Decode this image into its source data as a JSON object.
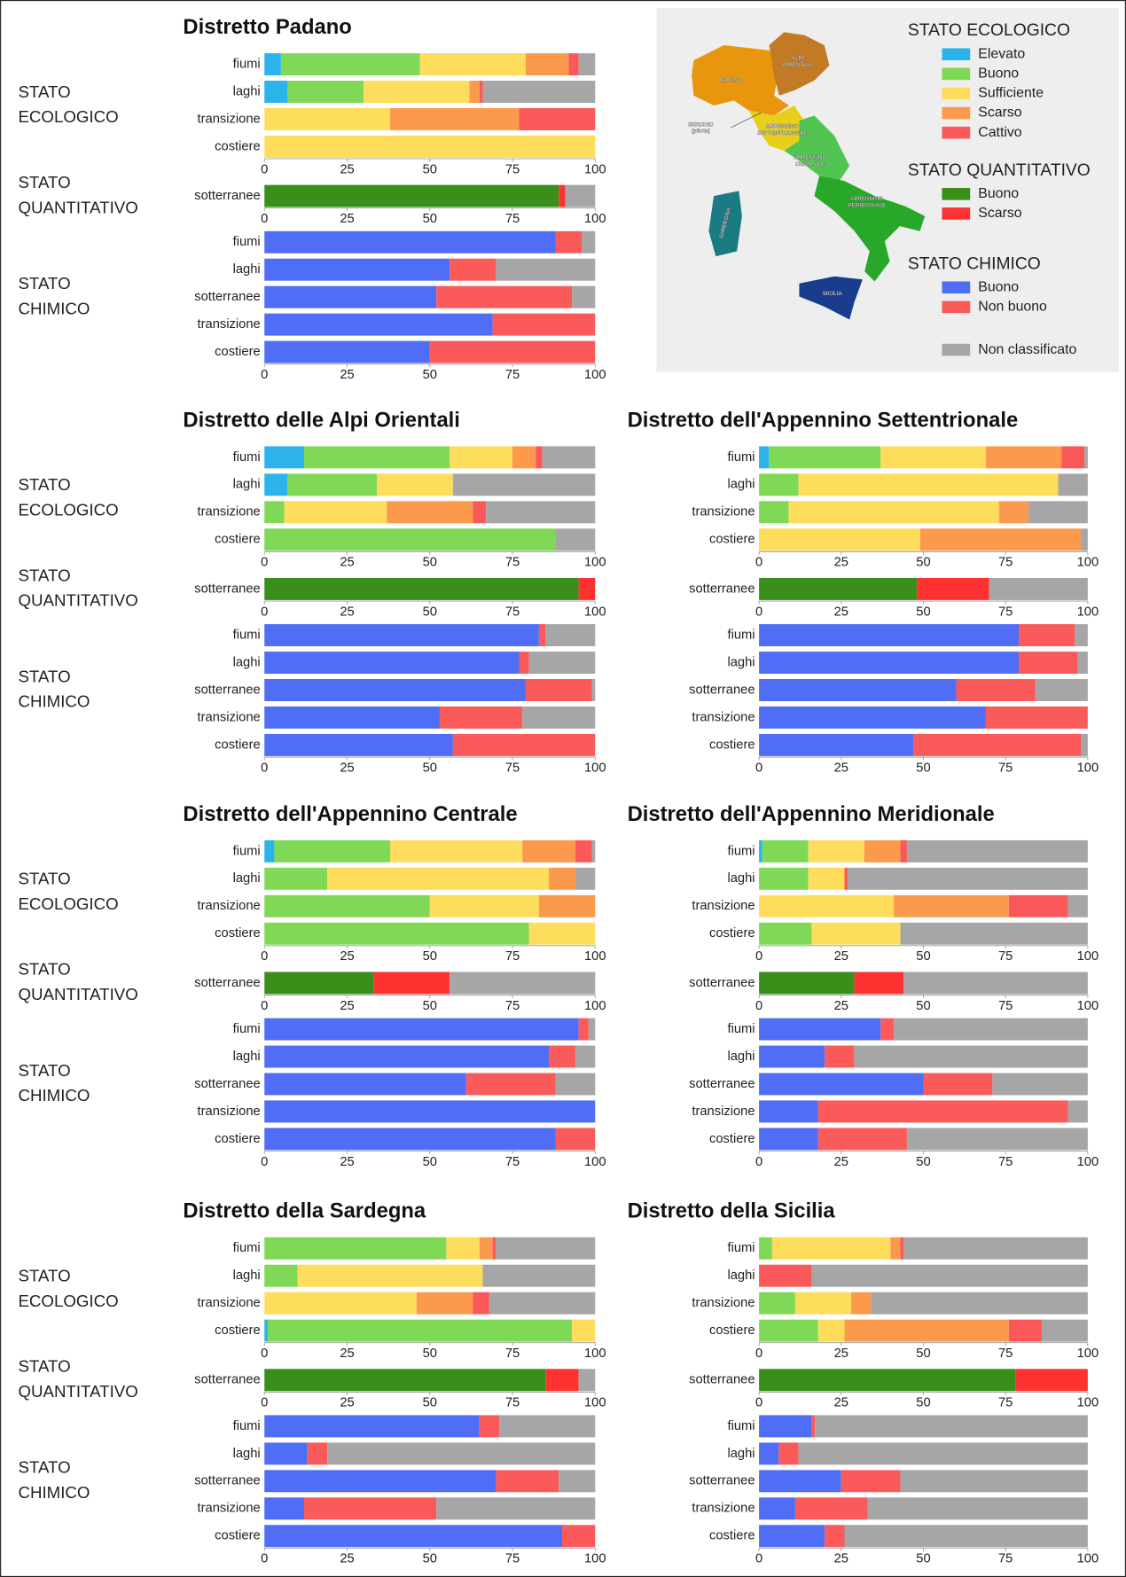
{
  "chart_data": [
    {
      "type": "bar",
      "title": "Distretto Padano",
      "xlim": [
        0,
        100
      ],
      "xticks": [
        0,
        25,
        50,
        75,
        100
      ],
      "panels": [
        {
          "label": "STATO ECOLOGICO",
          "categories": [
            "fiumi",
            "laghi",
            "transizione",
            "costiere"
          ],
          "series": [
            {
              "values": [
                5,
                7,
                0,
                0
              ]
            },
            {
              "values": [
                42,
                23,
                0,
                0
              ]
            },
            {
              "values": [
                32,
                32,
                38,
                100
              ]
            },
            {
              "values": [
                13,
                3,
                39,
                0
              ]
            },
            {
              "values": [
                3,
                1,
                23,
                0
              ]
            },
            {
              "values": [
                5,
                34,
                0,
                0
              ]
            }
          ]
        },
        {
          "label": "STATO QUANTITATIVO",
          "categories": [
            "sotterranee"
          ],
          "series": [
            {
              "values": [
                89
              ]
            },
            {
              "values": [
                2
              ]
            },
            {
              "values": [
                9
              ]
            }
          ]
        },
        {
          "label": "STATO CHIMICO",
          "categories": [
            "fiumi",
            "laghi",
            "sotterranee",
            "transizione",
            "costiere"
          ],
          "series": [
            {
              "values": [
                88,
                56,
                52,
                69,
                50
              ]
            },
            {
              "values": [
                8,
                14,
                41,
                31,
                50
              ]
            },
            {
              "values": [
                4,
                30,
                7,
                0,
                0
              ]
            }
          ]
        }
      ]
    },
    {
      "type": "bar",
      "title": "Distretto delle Alpi Orientali",
      "xlim": [
        0,
        100
      ],
      "xticks": [
        0,
        25,
        50,
        75,
        100
      ],
      "panels": [
        {
          "label": "STATO ECOLOGICO",
          "categories": [
            "fiumi",
            "laghi",
            "transizione",
            "costiere"
          ],
          "series": [
            {
              "values": [
                12,
                7,
                0,
                0
              ]
            },
            {
              "values": [
                44,
                27,
                6,
                88
              ]
            },
            {
              "values": [
                19,
                23,
                31,
                0
              ]
            },
            {
              "values": [
                7,
                0,
                26,
                0
              ]
            },
            {
              "values": [
                2,
                0,
                4,
                0
              ]
            },
            {
              "values": [
                16,
                43,
                33,
                12
              ]
            }
          ]
        },
        {
          "label": "STATO QUANTITATIVO",
          "categories": [
            "sotterranee"
          ],
          "series": [
            {
              "values": [
                95
              ]
            },
            {
              "values": [
                5
              ]
            },
            {
              "values": [
                0
              ]
            }
          ]
        },
        {
          "label": "STATO CHIMICO",
          "categories": [
            "fiumi",
            "laghi",
            "sotterranee",
            "transizione",
            "costiere"
          ],
          "series": [
            {
              "values": [
                83,
                77,
                79,
                53,
                57
              ]
            },
            {
              "values": [
                2,
                3,
                20,
                25,
                43
              ]
            },
            {
              "values": [
                15,
                20,
                1,
                22,
                0
              ]
            }
          ]
        }
      ]
    },
    {
      "type": "bar",
      "title": "Distretto dell'Appennino Settentrionale",
      "xlim": [
        0,
        100
      ],
      "xticks": [
        0,
        25,
        50,
        75,
        100
      ],
      "panels": [
        {
          "categories": [
            "fiumi",
            "laghi",
            "transizione",
            "costiere"
          ],
          "series": [
            {
              "values": [
                3,
                0,
                0,
                0
              ]
            },
            {
              "values": [
                34,
                12,
                9,
                0
              ]
            },
            {
              "values": [
                32,
                79,
                64,
                49
              ]
            },
            {
              "values": [
                23,
                0,
                9,
                49
              ]
            },
            {
              "values": [
                7,
                0,
                0,
                0
              ]
            },
            {
              "values": [
                1,
                9,
                18,
                2
              ]
            }
          ]
        },
        {
          "categories": [
            "sotterranee"
          ],
          "series": [
            {
              "values": [
                48
              ]
            },
            {
              "values": [
                22
              ]
            },
            {
              "values": [
                30
              ]
            }
          ]
        },
        {
          "categories": [
            "fiumi",
            "laghi",
            "sotterranee",
            "transizione",
            "costiere"
          ],
          "series": [
            {
              "values": [
                79,
                79,
                60,
                69,
                47
              ]
            },
            {
              "values": [
                17,
                18,
                24,
                31,
                51
              ]
            },
            {
              "values": [
                4,
                3,
                16,
                0,
                2
              ]
            }
          ]
        }
      ]
    },
    {
      "type": "bar",
      "title": "Distretto dell'Appennino Centrale",
      "xlim": [
        0,
        100
      ],
      "xticks": [
        0,
        25,
        50,
        75,
        100
      ],
      "panels": [
        {
          "label": "STATO ECOLOGICO",
          "categories": [
            "fiumi",
            "laghi",
            "transizione",
            "costiere"
          ],
          "series": [
            {
              "values": [
                3,
                0,
                0,
                0
              ]
            },
            {
              "values": [
                35,
                19,
                50,
                80
              ]
            },
            {
              "values": [
                40,
                67,
                33,
                20
              ]
            },
            {
              "values": [
                16,
                8,
                17,
                0
              ]
            },
            {
              "values": [
                5,
                0,
                0,
                0
              ]
            },
            {
              "values": [
                1,
                6,
                0,
                0
              ]
            }
          ]
        },
        {
          "label": "STATO QUANTITATIVO",
          "categories": [
            "sotterranee"
          ],
          "series": [
            {
              "values": [
                33
              ]
            },
            {
              "values": [
                23
              ]
            },
            {
              "values": [
                44
              ]
            }
          ]
        },
        {
          "label": "STATO CHIMICO",
          "categories": [
            "fiumi",
            "laghi",
            "sotterranee",
            "transizione",
            "costiere"
          ],
          "series": [
            {
              "values": [
                95,
                86,
                61,
                100,
                88
              ]
            },
            {
              "values": [
                3,
                8,
                27,
                0,
                12
              ]
            },
            {
              "values": [
                2,
                6,
                12,
                0,
                0
              ]
            }
          ]
        }
      ]
    },
    {
      "type": "bar",
      "title": "Distretto dell'Appennino Meridionale",
      "xlim": [
        0,
        100
      ],
      "xticks": [
        0,
        25,
        50,
        75,
        100
      ],
      "panels": [
        {
          "categories": [
            "fiumi",
            "laghi",
            "transizione",
            "costiere"
          ],
          "series": [
            {
              "values": [
                1,
                0,
                0,
                0
              ]
            },
            {
              "values": [
                14,
                15,
                0,
                16
              ]
            },
            {
              "values": [
                17,
                11,
                41,
                27
              ]
            },
            {
              "values": [
                11,
                0,
                35,
                0
              ]
            },
            {
              "values": [
                2,
                1,
                18,
                0
              ]
            },
            {
              "values": [
                55,
                73,
                6,
                57
              ]
            }
          ]
        },
        {
          "categories": [
            "sotterranee"
          ],
          "series": [
            {
              "values": [
                29
              ]
            },
            {
              "values": [
                15
              ]
            },
            {
              "values": [
                56
              ]
            }
          ]
        },
        {
          "categories": [
            "fiumi",
            "laghi",
            "sotterranee",
            "transizione",
            "costiere"
          ],
          "series": [
            {
              "values": [
                37,
                20,
                50,
                18,
                18
              ]
            },
            {
              "values": [
                4,
                9,
                21,
                76,
                27
              ]
            },
            {
              "values": [
                59,
                71,
                29,
                6,
                55
              ]
            }
          ]
        }
      ]
    },
    {
      "type": "bar",
      "title": "Distretto della Sardegna",
      "xlim": [
        0,
        100
      ],
      "xticks": [
        0,
        25,
        50,
        75,
        100
      ],
      "panels": [
        {
          "label": "STATO ECOLOGICO",
          "categories": [
            "fiumi",
            "laghi",
            "transizione",
            "costiere"
          ],
          "series": [
            {
              "values": [
                0,
                0,
                0,
                1
              ]
            },
            {
              "values": [
                55,
                10,
                0,
                92
              ]
            },
            {
              "values": [
                10,
                56,
                46,
                7
              ]
            },
            {
              "values": [
                4,
                0,
                17,
                0
              ]
            },
            {
              "values": [
                1,
                0,
                5,
                0
              ]
            },
            {
              "values": [
                30,
                34,
                32,
                0
              ]
            }
          ]
        },
        {
          "label": "STATO QUANTITATIVO",
          "categories": [
            "sotterranee"
          ],
          "series": [
            {
              "values": [
                85
              ]
            },
            {
              "values": [
                10
              ]
            },
            {
              "values": [
                5
              ]
            }
          ]
        },
        {
          "label": "STATO CHIMICO",
          "categories": [
            "fiumi",
            "laghi",
            "sotterranee",
            "transizione",
            "costiere"
          ],
          "series": [
            {
              "values": [
                65,
                13,
                70,
                12,
                90
              ]
            },
            {
              "values": [
                6,
                6,
                19,
                40,
                10
              ]
            },
            {
              "values": [
                29,
                81,
                11,
                48,
                0
              ]
            }
          ]
        }
      ]
    },
    {
      "type": "bar",
      "title": "Distretto della Sicilia",
      "xlim": [
        0,
        100
      ],
      "xticks": [
        0,
        25,
        50,
        75,
        100
      ],
      "panels": [
        {
          "categories": [
            "fiumi",
            "laghi",
            "transizione",
            "costiere"
          ],
          "series": [
            {
              "values": [
                0,
                0,
                0,
                0
              ]
            },
            {
              "values": [
                4,
                0,
                11,
                18
              ]
            },
            {
              "values": [
                36,
                0,
                17,
                8
              ]
            },
            {
              "values": [
                3,
                0,
                6,
                50
              ]
            },
            {
              "values": [
                1,
                16,
                0,
                10
              ]
            },
            {
              "values": [
                56,
                84,
                66,
                14
              ]
            }
          ]
        },
        {
          "categories": [
            "sotterranee"
          ],
          "series": [
            {
              "values": [
                78
              ]
            },
            {
              "values": [
                22
              ]
            },
            {
              "values": [
                0
              ]
            }
          ]
        },
        {
          "categories": [
            "fiumi",
            "laghi",
            "sotterranee",
            "transizione",
            "costiere"
          ],
          "series": [
            {
              "values": [
                16,
                6,
                25,
                11,
                20
              ]
            },
            {
              "values": [
                1,
                6,
                18,
                22,
                6
              ]
            },
            {
              "values": [
                83,
                88,
                57,
                67,
                74
              ]
            }
          ]
        }
      ]
    }
  ],
  "legend": {
    "groups": [
      {
        "title": "STATO ECOLOGICO",
        "items": [
          {
            "name": "Elevato",
            "color": "#2bb3ea"
          },
          {
            "name": "Buono",
            "color": "#7fd957"
          },
          {
            "name": "Sufficiente",
            "color": "#fedc5c"
          },
          {
            "name": "Scarso",
            "color": "#fb9a4c"
          },
          {
            "name": "Cattivo",
            "color": "#fb5959"
          }
        ]
      },
      {
        "title": "STATO QUANTITATIVO",
        "items": [
          {
            "name": "Buono",
            "color": "#3a8f1b"
          },
          {
            "name": "Scarso",
            "color": "#ff3232"
          }
        ]
      },
      {
        "title": "STATO CHIMICO",
        "items": [
          {
            "name": "Buono",
            "color": "#4f6df5"
          },
          {
            "name": "Non buono",
            "color": "#fb5a5a"
          }
        ]
      }
    ],
    "other": {
      "name": "Non classificato",
      "color": "#a6a6a6"
    }
  },
  "map": {
    "labels": [
      "PADANO",
      "ALPI ORIENTALI",
      "SERCHIO (pilota)",
      "APPENNINO SETTENTRIONALE",
      "APPENNINO CENTRALE",
      "APPENNINO MERIDIONALE",
      "SARDEGNA",
      "SICILIA"
    ]
  }
}
